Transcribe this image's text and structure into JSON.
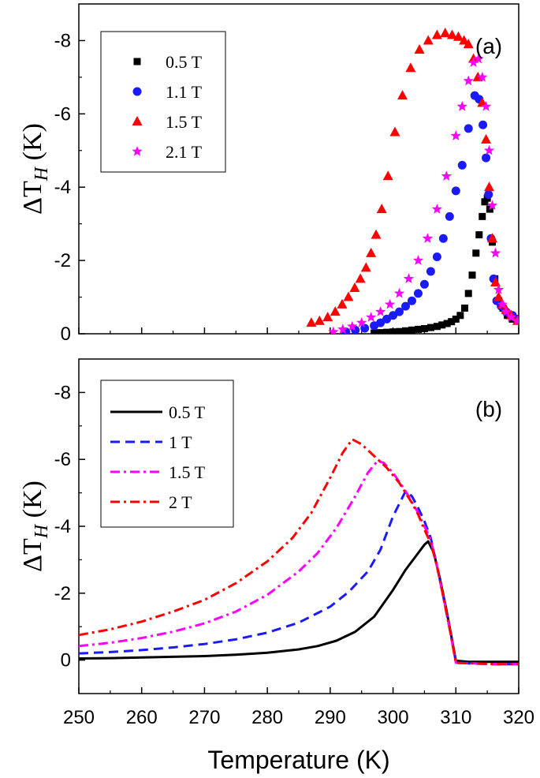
{
  "chart_data": [
    {
      "panel_label": "(a)",
      "type": "scatter",
      "ylabel": "ΔT_H (K)",
      "ylabel_main": "ΔT",
      "ylabel_sub": "H",
      "ylabel_unit": "(K)",
      "xlim": [
        250,
        320
      ],
      "ylim": [
        0,
        -9
      ],
      "yticks": [
        0,
        -2,
        -4,
        -6,
        -8
      ],
      "ytick_labels": [
        "0",
        "-2",
        "-4",
        "-6",
        "-8"
      ],
      "legend_position": "top-left",
      "series": [
        {
          "name": "0.5 T",
          "marker": "square",
          "color": "#000000",
          "x": [
            297,
            298,
            299,
            300,
            301,
            302,
            303,
            304,
            305,
            306,
            307,
            307.8,
            308.6,
            309.3,
            310,
            310.7,
            311.4,
            312,
            312.6,
            313.2,
            313.7,
            314.2,
            314.6,
            315,
            315.4,
            315.8,
            316.2,
            316.8,
            317.5,
            318.2,
            319,
            319.8
          ],
          "y": [
            -0.02,
            -0.03,
            -0.04,
            -0.05,
            -0.06,
            -0.08,
            -0.1,
            -0.12,
            -0.14,
            -0.17,
            -0.2,
            -0.24,
            -0.28,
            -0.33,
            -0.4,
            -0.5,
            -0.7,
            -1.1,
            -1.6,
            -2.2,
            -2.7,
            -3.2,
            -3.6,
            -3.7,
            -3.4,
            -2.5,
            -1.5,
            -0.9,
            -0.7,
            -0.5,
            -0.4,
            -0.35
          ]
        },
        {
          "name": "1.1 T",
          "marker": "circle",
          "color": "#1a1aff",
          "x": [
            292.5,
            294,
            295.5,
            297,
            298,
            299,
            300,
            301,
            302,
            303,
            304,
            305,
            306,
            307,
            308,
            309,
            310,
            311,
            312,
            313,
            313.7,
            314.3,
            314.8,
            315.2,
            315.6,
            316,
            316.5,
            317.2,
            318,
            319,
            319.8
          ],
          "y": [
            -0.05,
            -0.1,
            -0.15,
            -0.22,
            -0.3,
            -0.4,
            -0.5,
            -0.6,
            -0.75,
            -0.9,
            -1.1,
            -1.35,
            -1.7,
            -2.1,
            -2.6,
            -3.2,
            -3.9,
            -4.6,
            -5.6,
            -6.5,
            -6.4,
            -5.7,
            -4.8,
            -3.8,
            -2.6,
            -1.5,
            -0.9,
            -0.75,
            -0.6,
            -0.5,
            -0.4
          ]
        },
        {
          "name": "1.5 T",
          "marker": "triangle",
          "color": "#ff0000",
          "x": [
            287,
            288.3,
            289.6,
            290.8,
            291.9,
            292.9,
            293.9,
            294.8,
            295.7,
            296.5,
            297.3,
            298.2,
            299.2,
            300.3,
            301.5,
            302.8,
            304.2,
            305.6,
            307,
            308.3,
            309.4,
            310.4,
            311.3,
            312,
            312.8,
            313.5,
            314.2,
            314.8,
            315.3,
            315.8,
            316.3,
            316.8,
            317.4,
            318,
            318.8,
            319.8
          ],
          "y": [
            -0.3,
            -0.35,
            -0.45,
            -0.6,
            -0.8,
            -1.0,
            -1.25,
            -1.5,
            -1.8,
            -2.2,
            -2.7,
            -3.4,
            -4.3,
            -5.5,
            -6.5,
            -7.25,
            -7.75,
            -8.0,
            -8.15,
            -8.2,
            -8.15,
            -8.1,
            -8.0,
            -7.9,
            -7.5,
            -7.0,
            -6.3,
            -5.3,
            -4.0,
            -2.6,
            -1.4,
            -1.0,
            -0.8,
            -0.65,
            -0.5,
            -0.35
          ]
        },
        {
          "name": "2.1 T",
          "marker": "star",
          "color": "#ff00ff",
          "x": [
            290.5,
            292,
            293.5,
            295,
            296.5,
            298,
            299.5,
            301,
            302.5,
            304,
            305.5,
            307,
            308.5,
            310,
            311,
            312,
            312.8,
            313.6,
            314.2,
            314.8,
            315.3,
            315.8,
            316.3,
            316.8,
            317.4,
            318,
            318.8,
            319.8
          ],
          "y": [
            -0.05,
            -0.12,
            -0.2,
            -0.3,
            -0.45,
            -0.6,
            -0.8,
            -1.1,
            -1.5,
            -2.0,
            -2.6,
            -3.4,
            -4.3,
            -5.4,
            -6.2,
            -6.9,
            -7.4,
            -7.5,
            -7.0,
            -6.2,
            -5.0,
            -3.5,
            -2.2,
            -1.2,
            -0.8,
            -0.6,
            -0.45,
            -0.35
          ]
        }
      ]
    },
    {
      "panel_label": "(b)",
      "type": "line",
      "ylabel": "ΔT_H (K)",
      "ylabel_main": "ΔT",
      "ylabel_sub": "H",
      "ylabel_unit": "(K)",
      "xlabel": "Temperature (K)",
      "xlim": [
        250,
        320
      ],
      "ylim": [
        1,
        -9
      ],
      "xticks": [
        250,
        260,
        270,
        280,
        290,
        300,
        310,
        320
      ],
      "xtick_labels": [
        "250",
        "260",
        "270",
        "280",
        "290",
        "300",
        "310",
        "320"
      ],
      "yticks": [
        0,
        -2,
        -4,
        -6,
        -8
      ],
      "ytick_labels": [
        "0",
        "-2",
        "-4",
        "-6",
        "-8"
      ],
      "legend_position": "top-left",
      "series": [
        {
          "name": "0.5 T",
          "style": "solid",
          "color": "#000000",
          "x": [
            250,
            255,
            260,
            265,
            270,
            275,
            280,
            285,
            288,
            291,
            294,
            297,
            300,
            302,
            304,
            305,
            305.6,
            306.5,
            307.5,
            308.5,
            309.3,
            310,
            312,
            316,
            320
          ],
          "y": [
            -0.05,
            -0.06,
            -0.08,
            -0.1,
            -0.12,
            -0.16,
            -0.22,
            -0.32,
            -0.42,
            -0.58,
            -0.85,
            -1.3,
            -2.1,
            -2.7,
            -3.2,
            -3.45,
            -3.55,
            -3.2,
            -2.4,
            -1.5,
            -0.7,
            0.02,
            0.05,
            0.05,
            0.05
          ]
        },
        {
          "name": "1 T",
          "style": "dashed",
          "color": "#1a1aff",
          "x": [
            250,
            255,
            260,
            265,
            270,
            275,
            280,
            285,
            290,
            293,
            296,
            298,
            300,
            302,
            303,
            304,
            305,
            306,
            307,
            308,
            309,
            310,
            312,
            316,
            320
          ],
          "y": [
            -0.2,
            -0.24,
            -0.3,
            -0.38,
            -0.48,
            -0.62,
            -0.82,
            -1.12,
            -1.6,
            -2.05,
            -2.65,
            -3.3,
            -4.3,
            -5.05,
            -4.9,
            -4.55,
            -4.15,
            -3.65,
            -2.8,
            -1.9,
            -0.95,
            0.05,
            0.1,
            0.12,
            0.12
          ]
        },
        {
          "name": "1.5 T",
          "style": "dashdot",
          "color": "#ff00ff",
          "x": [
            250,
            255,
            260,
            265,
            270,
            275,
            280,
            285,
            288,
            291,
            294,
            296,
            297.5,
            298.5,
            300,
            302,
            304,
            305,
            306,
            307,
            308,
            309,
            310,
            313,
            316,
            320
          ],
          "y": [
            -0.42,
            -0.52,
            -0.66,
            -0.85,
            -1.1,
            -1.45,
            -1.95,
            -2.65,
            -3.2,
            -3.95,
            -4.9,
            -5.6,
            -5.95,
            -5.9,
            -5.6,
            -5.05,
            -4.4,
            -4.0,
            -3.6,
            -2.8,
            -1.9,
            -0.95,
            0.08,
            0.1,
            0.12,
            0.12
          ]
        },
        {
          "name": "2 T",
          "style": "dashdot",
          "color": "#ff0000",
          "x": [
            250,
            255,
            260,
            265,
            270,
            275,
            280,
            284,
            287,
            290,
            292,
            293.5,
            295,
            297,
            299,
            301,
            303,
            304,
            305,
            306,
            307,
            308,
            309,
            310,
            313,
            316,
            320
          ],
          "y": [
            -0.75,
            -0.92,
            -1.15,
            -1.45,
            -1.8,
            -2.3,
            -2.95,
            -3.65,
            -4.4,
            -5.45,
            -6.2,
            -6.6,
            -6.45,
            -6.1,
            -5.75,
            -5.3,
            -4.7,
            -4.35,
            -3.9,
            -3.5,
            -2.8,
            -1.9,
            -0.95,
            0.08,
            0.1,
            0.12,
            0.12
          ]
        }
      ]
    }
  ]
}
